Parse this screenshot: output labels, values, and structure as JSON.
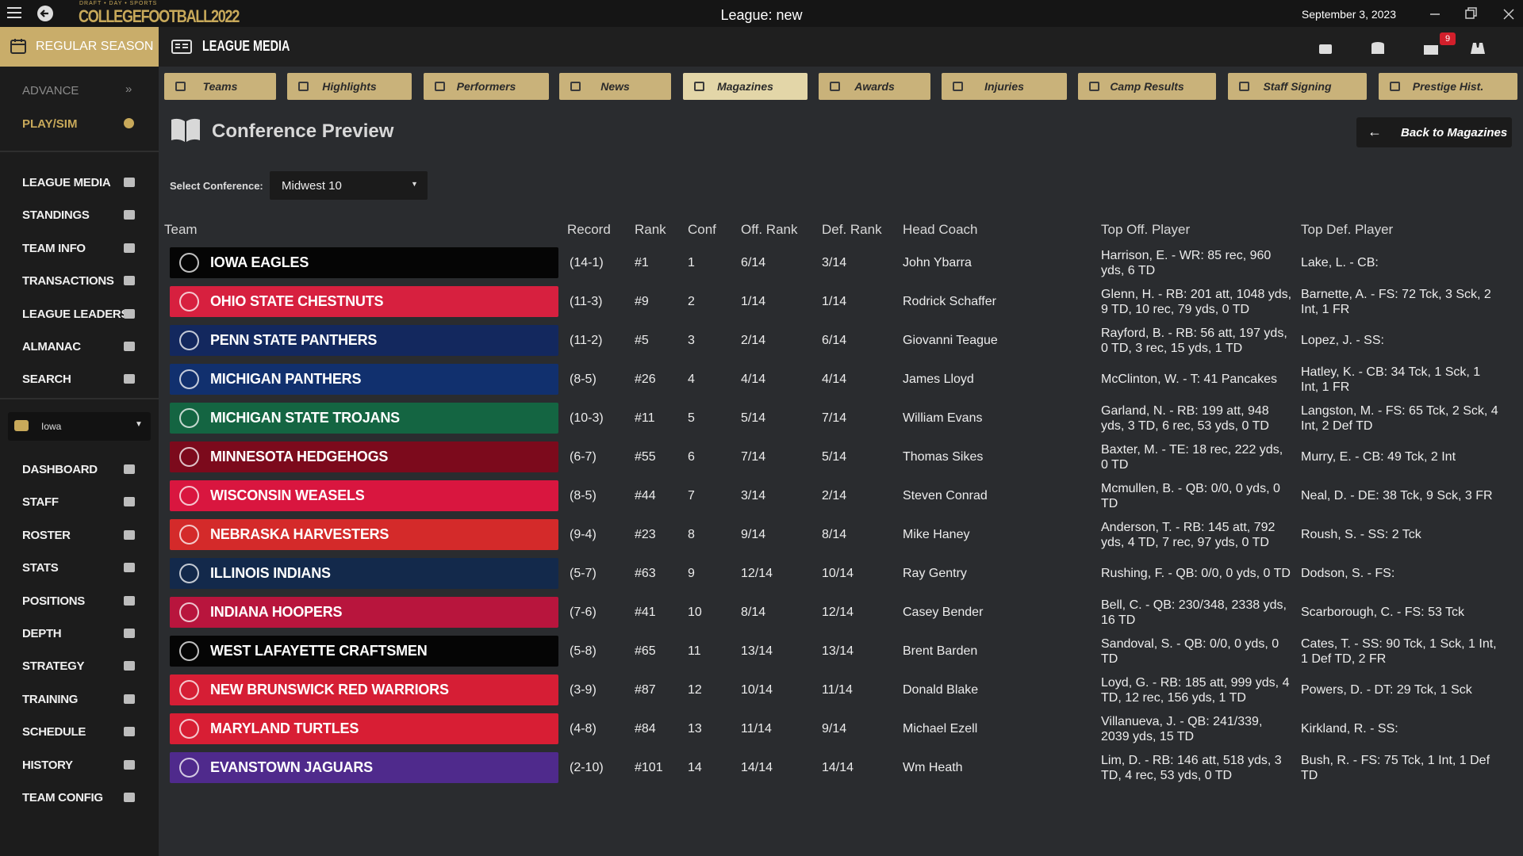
{
  "titlebar": {
    "logo_top": "DRAFT • DAY • SPORTS",
    "logo": "COLLEGEFOOTBALL2022",
    "title": "League: new",
    "date": "September 3, 2023"
  },
  "topbar": {
    "season": "REGULAR SEASON",
    "section": "LEAGUE MEDIA",
    "mail_badge": 9
  },
  "sidebar": {
    "advance": "ADVANCE",
    "play": "PLAY/SIM",
    "league_items": [
      "LEAGUE MEDIA",
      "STANDINGS",
      "TEAM INFO",
      "TRANSACTIONS",
      "LEAGUE LEADERS",
      "ALMANAC",
      "SEARCH"
    ],
    "team_select": "Iowa",
    "team_items": [
      "DASHBOARD",
      "STAFF",
      "ROSTER",
      "STATS",
      "POSITIONS",
      "DEPTH",
      "STRATEGY",
      "TRAINING",
      "SCHEDULE",
      "HISTORY",
      "TEAM CONFIG"
    ]
  },
  "tabs": [
    "Teams",
    "Highlights",
    "Performers",
    "News",
    "Magazines",
    "Awards",
    "Injuries",
    "Camp Results",
    "Staff Signing",
    "Prestige Hist."
  ],
  "active_tab": 4,
  "page": {
    "title": "Conference Preview",
    "back": "Back to Magazines",
    "select_label": "Select Conference:",
    "select_value": "Midwest 10"
  },
  "table": {
    "columns": [
      "Team",
      "Record",
      "Rank",
      "Conf",
      "Off. Rank",
      "Def. Rank",
      "Head Coach",
      "Top Off. Player",
      "Top Def. Player"
    ],
    "row_colors": [
      "#050505",
      "#d7203f",
      "#13285e",
      "#11306e",
      "#146542",
      "#7c0a1c",
      "#d9163f",
      "#d42a2a",
      "#13294b",
      "#b8153d",
      "#050505",
      "#d61e35",
      "#d81e34",
      "#4f2a8c"
    ],
    "rows": [
      [
        "IOWA EAGLES",
        "(14-1)",
        "#1",
        1,
        "6/14",
        "3/14",
        "John Ybarra",
        "Harrison, E. - WR: 85 rec, 960 yds, 6 TD",
        "Lake, L. - CB:"
      ],
      [
        "OHIO STATE CHESTNUTS",
        "(11-3)",
        "#9",
        2,
        "1/14",
        "1/14",
        "Rodrick Schaffer",
        "Glenn, H. - RB: 201 att, 1048 yds, 9 TD, 10 rec, 79 yds, 0 TD",
        "Barnette, A. - FS: 72 Tck, 3 Sck, 2 Int, 1 FR"
      ],
      [
        "PENN STATE PANTHERS",
        "(11-2)",
        "#5",
        3,
        "2/14",
        "6/14",
        "Giovanni Teague",
        "Rayford, B. - RB: 56 att, 197 yds, 0 TD, 3 rec, 15 yds, 1 TD",
        "Lopez, J. - SS:"
      ],
      [
        "MICHIGAN PANTHERS",
        "(8-5)",
        "#26",
        4,
        "4/14",
        "4/14",
        "James Lloyd",
        "McClinton, W. - T: 41 Pancakes",
        "Hatley, K. - CB: 34 Tck, 1 Sck, 1 Int, 1 FR"
      ],
      [
        "MICHIGAN STATE TROJANS",
        "(10-3)",
        "#11",
        5,
        "5/14",
        "7/14",
        "William Evans",
        "Garland, N. - RB: 199 att, 948 yds, 3 TD, 6 rec, 53 yds, 0 TD",
        "Langston, M. - FS: 65 Tck, 2 Sck, 4 Int, 2 Def TD"
      ],
      [
        "MINNESOTA HEDGEHOGS",
        "(6-7)",
        "#55",
        6,
        "7/14",
        "5/14",
        "Thomas Sikes",
        "Baxter, M. - TE: 18 rec, 222 yds, 0 TD",
        "Murry, E. - CB: 49 Tck, 2 Int"
      ],
      [
        "WISCONSIN WEASELS",
        "(8-5)",
        "#44",
        7,
        "3/14",
        "2/14",
        "Steven Conrad",
        "Mcmullen, B. - QB: 0/0, 0 yds, 0 TD",
        "Neal, D. - DE: 38 Tck, 9 Sck, 3 FR"
      ],
      [
        "NEBRASKA HARVESTERS",
        "(9-4)",
        "#23",
        8,
        "9/14",
        "8/14",
        "Mike Haney",
        "Anderson, T. - RB: 145 att, 792 yds, 4 TD, 7 rec, 97 yds, 0 TD",
        "Roush, S. - SS: 2 Tck"
      ],
      [
        "ILLINOIS INDIANS",
        "(5-7)",
        "#63",
        9,
        "12/14",
        "10/14",
        "Ray Gentry",
        "Rushing, F. - QB: 0/0, 0 yds, 0 TD",
        "Dodson, S. - FS:"
      ],
      [
        "INDIANA HOOPERS",
        "(7-6)",
        "#41",
        10,
        "8/14",
        "12/14",
        "Casey Bender",
        "Bell, C. - QB: 230/348, 2338 yds, 16 TD",
        "Scarborough, C. - FS: 53 Tck"
      ],
      [
        "WEST LAFAYETTE CRAFTSMEN",
        "(5-8)",
        "#65",
        11,
        "13/14",
        "13/14",
        "Brent Barden",
        "Sandoval, S. - QB: 0/0, 0 yds, 0 TD",
        "Cates, T. - SS: 90 Tck, 1 Sck, 1 Int, 1 Def TD, 2 FR"
      ],
      [
        "NEW BRUNSWICK RED WARRIORS",
        "(3-9)",
        "#87",
        12,
        "10/14",
        "11/14",
        "Donald Blake",
        "Loyd, G. - RB: 185 att, 999 yds, 4 TD, 12 rec, 156 yds, 1 TD",
        "Powers, D. - DT: 29 Tck, 1 Sck"
      ],
      [
        "MARYLAND TURTLES",
        "(4-8)",
        "#84",
        13,
        "11/14",
        "9/14",
        "Michael Ezell",
        "Villanueva, J. - QB: 241/339, 2039 yds, 15 TD",
        "Kirkland, R. - SS:"
      ],
      [
        "EVANSTOWN JAGUARS",
        "(2-10)",
        "#101",
        14,
        "14/14",
        "14/14",
        "Wm Heath",
        "Lim, D. - RB: 146 att, 518 yds, 3 TD, 4 rec, 53 yds, 0 TD",
        "Bush, R. - FS: 75 Tck, 1 Int, 1 Def TD"
      ]
    ]
  }
}
